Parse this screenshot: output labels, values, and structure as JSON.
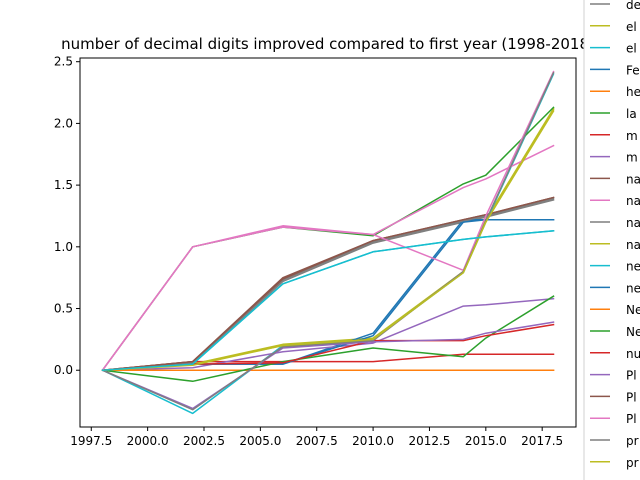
{
  "chart_data": {
    "type": "line",
    "title": "number of decimal digits improved compared to first year (1998-2018)",
    "xlabel": "",
    "ylabel": "",
    "x": [
      1998,
      2002,
      2006,
      2010,
      2014,
      2015,
      2018
    ],
    "xlim": [
      1997.0,
      2019.0
    ],
    "ylim": [
      -0.46,
      2.53
    ],
    "x_ticks": [
      1997.5,
      2000.0,
      2002.5,
      2005.0,
      2007.5,
      2010.0,
      2012.5,
      2015.0,
      2017.5
    ],
    "x_tick_labels": [
      "1997.5",
      "2000.0",
      "2002.5",
      "2005.0",
      "2007.5",
      "2010.0",
      "2012.5",
      "2015.0",
      "2017.5"
    ],
    "y_ticks": [
      0.0,
      0.5,
      1.0,
      1.5,
      2.0,
      2.5
    ],
    "y_tick_labels": [
      "0.0",
      "0.5",
      "1.0",
      "1.5",
      "2.0",
      "2.5"
    ],
    "grid": false,
    "legend_position": "right-outside",
    "series": [
      {
        "name": "de",
        "color": "#7f7f7f",
        "values": [
          0,
          0.05,
          0.72,
          1.03,
          1.2,
          1.24,
          1.38
        ]
      },
      {
        "name": "el",
        "color": "#bcbd22",
        "values": [
          0,
          0.05,
          0.21,
          0.26,
          0.8,
          1.22,
          2.12
        ]
      },
      {
        "name": "el",
        "color": "#17becf",
        "values": [
          0,
          -0.35,
          0.2,
          0.25,
          0.79,
          1.2,
          2.4
        ]
      },
      {
        "name": "Fe",
        "color": "#1f77b4",
        "values": [
          0,
          0.05,
          0.05,
          0.3,
          1.22,
          1.22,
          1.22
        ]
      },
      {
        "name": "he",
        "color": "#ff7f0e",
        "values": [
          0,
          0,
          0,
          0,
          0,
          0,
          0
        ]
      },
      {
        "name": "la",
        "color": "#2ca02c",
        "values": [
          0,
          1.0,
          1.16,
          1.09,
          1.51,
          1.58,
          2.13
        ]
      },
      {
        "name": "m",
        "color": "#d62728",
        "values": [
          0,
          0.07,
          0.07,
          0.07,
          0.13,
          0.13,
          0.13
        ]
      },
      {
        "name": "m",
        "color": "#9467bd",
        "values": [
          0,
          0.02,
          0.15,
          0.22,
          0.52,
          0.53,
          0.58
        ]
      },
      {
        "name": "na",
        "color": "#8c564b",
        "values": [
          0,
          0.07,
          0.75,
          1.05,
          1.22,
          1.26,
          1.4
        ]
      },
      {
        "name": "na",
        "color": "#e377c2",
        "values": [
          0,
          1.0,
          1.17,
          1.1,
          1.48,
          1.55,
          1.82
        ]
      },
      {
        "name": "na",
        "color": "#7f7f7f",
        "values": [
          0,
          0.06,
          0.73,
          1.04,
          1.21,
          1.25,
          1.39
        ]
      },
      {
        "name": "na",
        "color": "#bcbd22",
        "values": [
          0,
          0.05,
          0.2,
          0.25,
          0.79,
          1.2,
          2.11
        ]
      },
      {
        "name": "ne",
        "color": "#17becf",
        "values": [
          0,
          0.05,
          0.7,
          0.96,
          1.06,
          1.08,
          1.13
        ]
      },
      {
        "name": "ne",
        "color": "#1f77b4",
        "values": [
          0,
          0.05,
          0.05,
          0.28,
          1.2,
          1.22,
          1.22
        ]
      },
      {
        "name": "Ne",
        "color": "#ff7f0e",
        "values": [
          0,
          0,
          0,
          0,
          0,
          0,
          0
        ]
      },
      {
        "name": "Ne",
        "color": "#2ca02c",
        "values": [
          0,
          -0.09,
          0.07,
          0.18,
          0.11,
          0.26,
          0.6
        ]
      },
      {
        "name": "nu",
        "color": "#d62728",
        "values": [
          0,
          0.05,
          0.06,
          0.24,
          0.24,
          0.28,
          0.37
        ]
      },
      {
        "name": "Pl",
        "color": "#9467bd",
        "values": [
          0,
          -0.31,
          0.18,
          0.23,
          0.25,
          0.3,
          0.39
        ]
      },
      {
        "name": "Pl",
        "color": "#8c564b",
        "values": [
          0,
          0.07,
          0.74,
          1.05,
          1.22,
          1.26,
          1.4
        ]
      },
      {
        "name": "Pl",
        "color": "#e377c2",
        "values": [
          0,
          1.0,
          1.16,
          1.1,
          0.81,
          1.25,
          2.42
        ]
      },
      {
        "name": "pr",
        "color": "#7f7f7f",
        "values": [
          0,
          -0.32,
          0.19,
          0.24,
          0.8,
          1.21,
          2.41
        ]
      },
      {
        "name": "pr",
        "color": "#bcbd22",
        "values": [
          0,
          0.04,
          0.2,
          0.25,
          0.79,
          1.2,
          2.1
        ]
      },
      {
        "name": "pr",
        "color": "#17becf",
        "values": [
          0,
          0.05,
          0.7,
          0.96,
          1.06,
          1.08,
          1.13
        ]
      }
    ]
  }
}
